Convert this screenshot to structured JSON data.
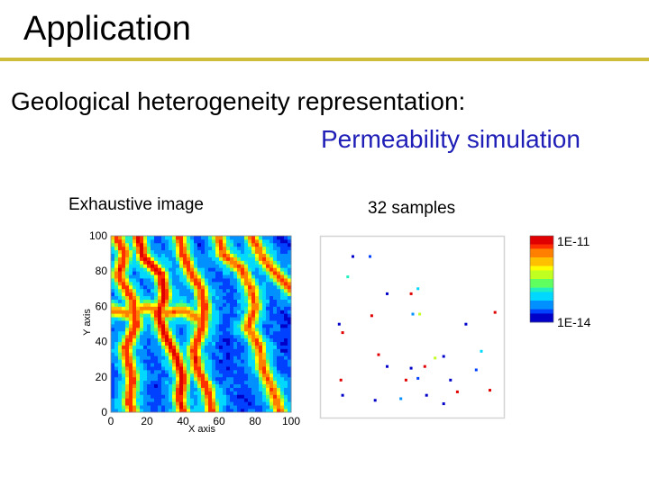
{
  "slide": {
    "title": "Application",
    "heading": "Geological heterogeneity representation:",
    "subheading": "Permeability simulation"
  },
  "colors": {
    "rule": "#cdbd3a",
    "subheading": "#1f1fb8",
    "permeability_scale": [
      "#0000c8",
      "#0040ff",
      "#0090ff",
      "#00d8ff",
      "#20f0c0",
      "#60ff60",
      "#c0ff20",
      "#ffff00",
      "#ffc000",
      "#ff8000",
      "#ff3000",
      "#e00000"
    ]
  },
  "panels": {
    "exhaustive": {
      "caption": "Exhaustive image",
      "xlabel": "X axis",
      "ylabel": "Y axis",
      "xticks": [
        "0",
        "20",
        "40",
        "60",
        "80",
        "100"
      ],
      "yticks": [
        "0",
        "20",
        "40",
        "60",
        "80",
        "100"
      ]
    },
    "samples": {
      "caption": "32 samples"
    }
  },
  "colorbar": {
    "top_label": "1E-11",
    "bottom_label": "1E-14"
  },
  "chart_data": [
    {
      "type": "heatmap",
      "title": "Exhaustive image",
      "xlabel": "X axis",
      "ylabel": "Y axis",
      "xlim": [
        0,
        100
      ],
      "ylim": [
        0,
        100
      ],
      "x_ticks": [
        0,
        20,
        40,
        60,
        80,
        100
      ],
      "y_ticks": [
        0,
        20,
        40,
        60,
        80,
        100
      ],
      "description_of_field": "permeability field with high-permeability channels",
      "colorbar": {
        "min_label": "1E-14",
        "max_label": "1E-11",
        "scale": "log"
      },
      "channels": [
        {
          "level": 0.9,
          "points": [
            [
              3,
              100
            ],
            [
              8,
              90
            ],
            [
              4,
              78
            ],
            [
              12,
              64
            ],
            [
              14,
              50
            ],
            [
              8,
              36
            ],
            [
              12,
              20
            ],
            [
              10,
              6
            ],
            [
              12,
              0
            ]
          ]
        },
        {
          "level": 0.95,
          "points": [
            [
              15,
              100
            ],
            [
              18,
              88
            ],
            [
              28,
              78
            ],
            [
              30,
              66
            ],
            [
              26,
              56
            ],
            [
              30,
              44
            ],
            [
              36,
              32
            ],
            [
              40,
              20
            ],
            [
              38,
              8
            ],
            [
              40,
              0
            ]
          ]
        },
        {
          "level": 0.9,
          "points": [
            [
              38,
              100
            ],
            [
              40,
              90
            ],
            [
              44,
              80
            ],
            [
              50,
              70
            ],
            [
              52,
              58
            ],
            [
              50,
              46
            ],
            [
              46,
              36
            ],
            [
              48,
              24
            ],
            [
              54,
              12
            ],
            [
              56,
              0
            ]
          ]
        },
        {
          "level": 0.85,
          "points": [
            [
              60,
              100
            ],
            [
              62,
              90
            ],
            [
              72,
              82
            ],
            [
              78,
              70
            ],
            [
              80,
              60
            ],
            [
              76,
              48
            ],
            [
              82,
              38
            ],
            [
              84,
              26
            ],
            [
              90,
              12
            ],
            [
              94,
              0
            ]
          ]
        },
        {
          "level": 0.85,
          "points": [
            [
              78,
              100
            ],
            [
              84,
              88
            ],
            [
              92,
              78
            ],
            [
              100,
              70
            ]
          ]
        },
        {
          "level": 0.8,
          "points": [
            [
              0,
              58
            ],
            [
              10,
              56
            ],
            [
              20,
              60
            ],
            [
              30,
              56
            ],
            [
              40,
              58
            ],
            [
              50,
              52
            ]
          ]
        }
      ]
    },
    {
      "type": "scatter",
      "title": "32 samples",
      "xlim": [
        0,
        100
      ],
      "ylim": [
        0,
        100
      ],
      "points": [
        {
          "x": 15,
          "y": 92,
          "level": 0.05
        },
        {
          "x": 25,
          "y": 92,
          "level": 0.1
        },
        {
          "x": 12,
          "y": 80,
          "level": 0.35
        },
        {
          "x": 35,
          "y": 70,
          "level": 0.05
        },
        {
          "x": 49,
          "y": 70,
          "level": 1.0
        },
        {
          "x": 53,
          "y": 73,
          "level": 0.3
        },
        {
          "x": 26,
          "y": 57,
          "level": 0.95
        },
        {
          "x": 50,
          "y": 58,
          "level": 0.2
        },
        {
          "x": 54,
          "y": 58,
          "level": 0.55
        },
        {
          "x": 98,
          "y": 59,
          "level": 0.95
        },
        {
          "x": 7,
          "y": 52,
          "level": 0.05
        },
        {
          "x": 9,
          "y": 47,
          "level": 0.95
        },
        {
          "x": 81,
          "y": 52,
          "level": 0.05
        },
        {
          "x": 30,
          "y": 34,
          "level": 0.95
        },
        {
          "x": 63,
          "y": 32,
          "level": 0.55
        },
        {
          "x": 68,
          "y": 33,
          "level": 0.05
        },
        {
          "x": 90,
          "y": 36,
          "level": 0.25
        },
        {
          "x": 35,
          "y": 27,
          "level": 0.05
        },
        {
          "x": 49,
          "y": 26,
          "level": 0.05
        },
        {
          "x": 57,
          "y": 27,
          "level": 0.95
        },
        {
          "x": 87,
          "y": 25,
          "level": 0.1
        },
        {
          "x": 8,
          "y": 19,
          "level": 0.95
        },
        {
          "x": 46,
          "y": 19,
          "level": 0.95
        },
        {
          "x": 53,
          "y": 20,
          "level": 0.15
        },
        {
          "x": 72,
          "y": 19,
          "level": 0.05
        },
        {
          "x": 9,
          "y": 10,
          "level": 0.05
        },
        {
          "x": 28,
          "y": 7,
          "level": 0.05
        },
        {
          "x": 43,
          "y": 8,
          "level": 0.2
        },
        {
          "x": 58,
          "y": 10,
          "level": 0.05
        },
        {
          "x": 76,
          "y": 12,
          "level": 0.95
        },
        {
          "x": 68,
          "y": 5,
          "level": 0.05
        },
        {
          "x": 95,
          "y": 13,
          "level": 0.95
        }
      ]
    }
  ]
}
